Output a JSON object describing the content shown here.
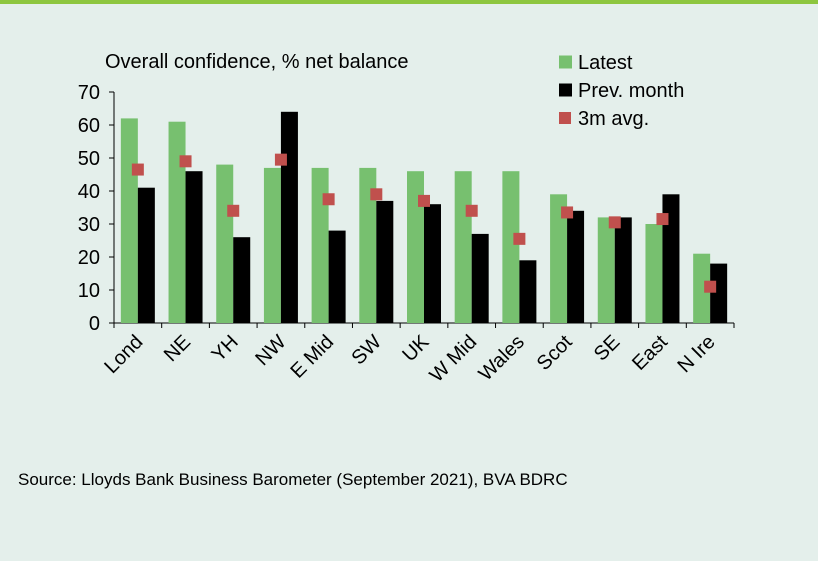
{
  "chart_data": {
    "type": "bar",
    "title": "Overall confidence, % net balance",
    "categories": [
      "Lond",
      "NE",
      "YH",
      "NW",
      "E Mid",
      "SW",
      "UK",
      "W Mid",
      "Wales",
      "Scot",
      "SE",
      "East",
      "N Ire"
    ],
    "series": [
      {
        "name": "Latest",
        "kind": "bar",
        "color": "#77c06f",
        "values": [
          62,
          61,
          48,
          47,
          47,
          47,
          46,
          46,
          46,
          39,
          32,
          30,
          21
        ]
      },
      {
        "name": "Prev. month",
        "kind": "bar",
        "color": "#000000",
        "values": [
          41,
          46,
          26,
          64,
          28,
          37,
          36,
          27,
          19,
          34,
          32,
          39,
          18
        ]
      },
      {
        "name": "3m avg.",
        "kind": "marker",
        "color": "#c0504d",
        "values": [
          46.5,
          49,
          34,
          49.5,
          37.5,
          39,
          37,
          34,
          25.5,
          33.5,
          30.5,
          31.5,
          11
        ]
      }
    ],
    "ylim": [
      0,
      70
    ],
    "yticks": [
      0,
      10,
      20,
      30,
      40,
      50,
      60,
      70
    ],
    "legend_position": "top-right",
    "grid": false
  },
  "source": "Source: Lloyds Bank Business Barometer (September 2021), BVA BDRC"
}
